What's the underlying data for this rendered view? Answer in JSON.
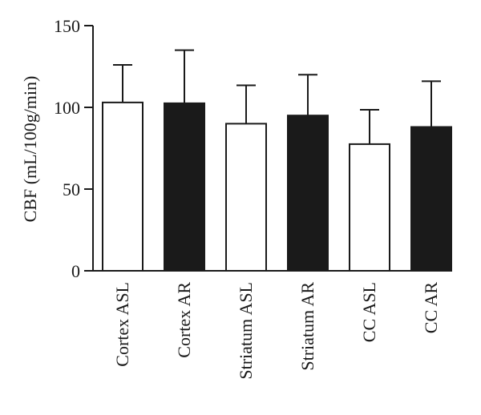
{
  "chart_data": {
    "type": "bar",
    "title": "",
    "xlabel": "",
    "ylabel": "CBF (mL/100g/min)",
    "ylim": [
      0,
      150
    ],
    "yticks": [
      0,
      50,
      100,
      150
    ],
    "grid": false,
    "categories": [
      "Cortex ASL",
      "Cortex AR",
      "Striatum ASL",
      "Striatum AR",
      "CC ASL",
      "CC AR"
    ],
    "values": [
      103,
      102.5,
      90,
      95,
      77.5,
      88
    ],
    "error_upper": [
      126,
      135,
      113.5,
      120,
      98.5,
      116
    ],
    "bar_colors": [
      "#ffffff",
      "#1a1a1a",
      "#ffffff",
      "#1a1a1a",
      "#ffffff",
      "#1a1a1a"
    ]
  }
}
